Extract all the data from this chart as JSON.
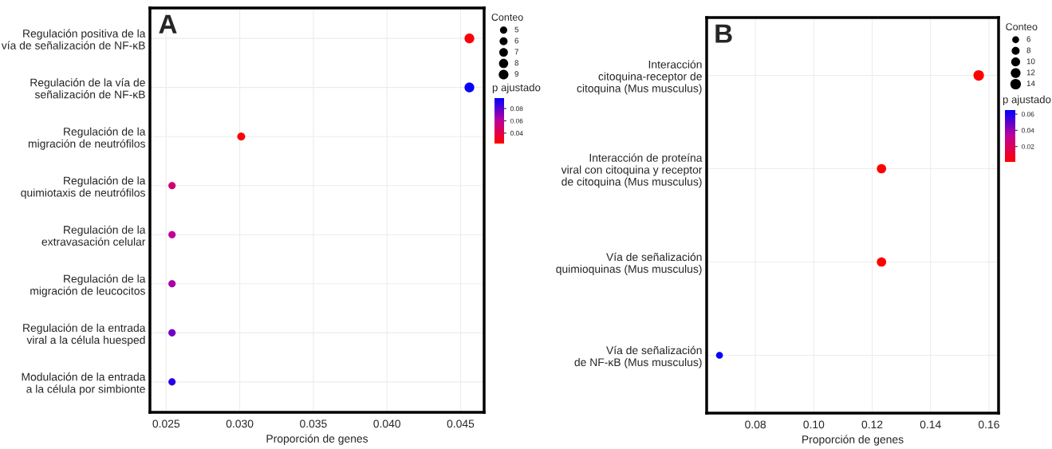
{
  "chart_data": [
    {
      "type": "bubble",
      "orientation": "horizontal",
      "categories": [
        "Regulación positiva de la\nvía de señalización de NF-κB",
        "Regulación de la vía de\nseñalización de NF-κB",
        "Regulación de la\nmigración de neutrófilos",
        "Regulación de la\nquimiotaxis de neutrófilos",
        "Regulación de la\nextravasación celular",
        "Regulación de la\nmigración de leucocitos",
        "Regulación de la entrada\nviral a la célula huesped",
        "Modulación de la entrada\na la célula por simbionte"
      ],
      "values": [
        0.0456,
        0.0456,
        0.0301,
        0.0254,
        0.0254,
        0.0254,
        0.0254,
        0.0254
      ],
      "sizes": [
        9,
        9,
        6,
        5,
        5,
        5,
        5,
        5
      ],
      "size_legend": [
        5,
        6,
        7,
        8,
        9
      ],
      "cvalues": [
        0.025,
        0.095,
        0.025,
        0.05,
        0.06,
        0.065,
        0.075,
        0.09
      ],
      "clim": [
        0.023,
        0.097
      ],
      "cticks": [
        0.04,
        0.06,
        0.08
      ],
      "clabel": "p ajustado",
      "legend_title": "Conteo",
      "xlabel": "Proporción de genes",
      "xlim": [
        0.0239,
        0.0466
      ],
      "xticks": [
        0.025,
        {
          "value": 0.03,
          "label": "0.030"
        },
        0.035,
        {
          "value": 0.04,
          "label": "0.040"
        },
        0.045
      ],
      "grid": true,
      "annotations": [
        "A"
      ]
    },
    {
      "type": "bubble",
      "orientation": "horizontal",
      "categories": [
        "Interacción\ncitoquina-receptor de\ncitoquina (Mus musculus)",
        "Interacción de proteína\nviral con citoquina y receptor\nde citoquina (Mus musculus)",
        "Vía de señalización\nquimioquinas (Mus musculus)",
        "Vía de señalización\nde NF-κB (Mus musculus)"
      ],
      "values": [
        0.1565,
        0.1232,
        0.1232,
        0.0677
      ],
      "sizes": [
        14,
        11,
        11,
        6
      ],
      "size_legend": [
        6,
        8,
        10,
        12,
        14
      ],
      "cvalues": [
        0.001,
        0.001,
        0.001,
        0.064
      ],
      "clim": [
        0.001,
        0.065
      ],
      "cticks": [
        0.02,
        0.04,
        0.06
      ],
      "clabel": "p ajustado",
      "legend_title": "Conteo",
      "xlabel": "Proporción de genes",
      "xlim": [
        0.0633,
        0.1633
      ],
      "xticks": [
        {
          "value": 0.08,
          "label": "0.08"
        },
        {
          "value": 0.1,
          "label": "0.10"
        },
        {
          "value": 0.12,
          "label": "0.12"
        },
        {
          "value": 0.14,
          "label": "0.14"
        },
        {
          "value": 0.16,
          "label": "0.16"
        }
      ],
      "grid": true,
      "annotations": [
        "B"
      ]
    }
  ]
}
